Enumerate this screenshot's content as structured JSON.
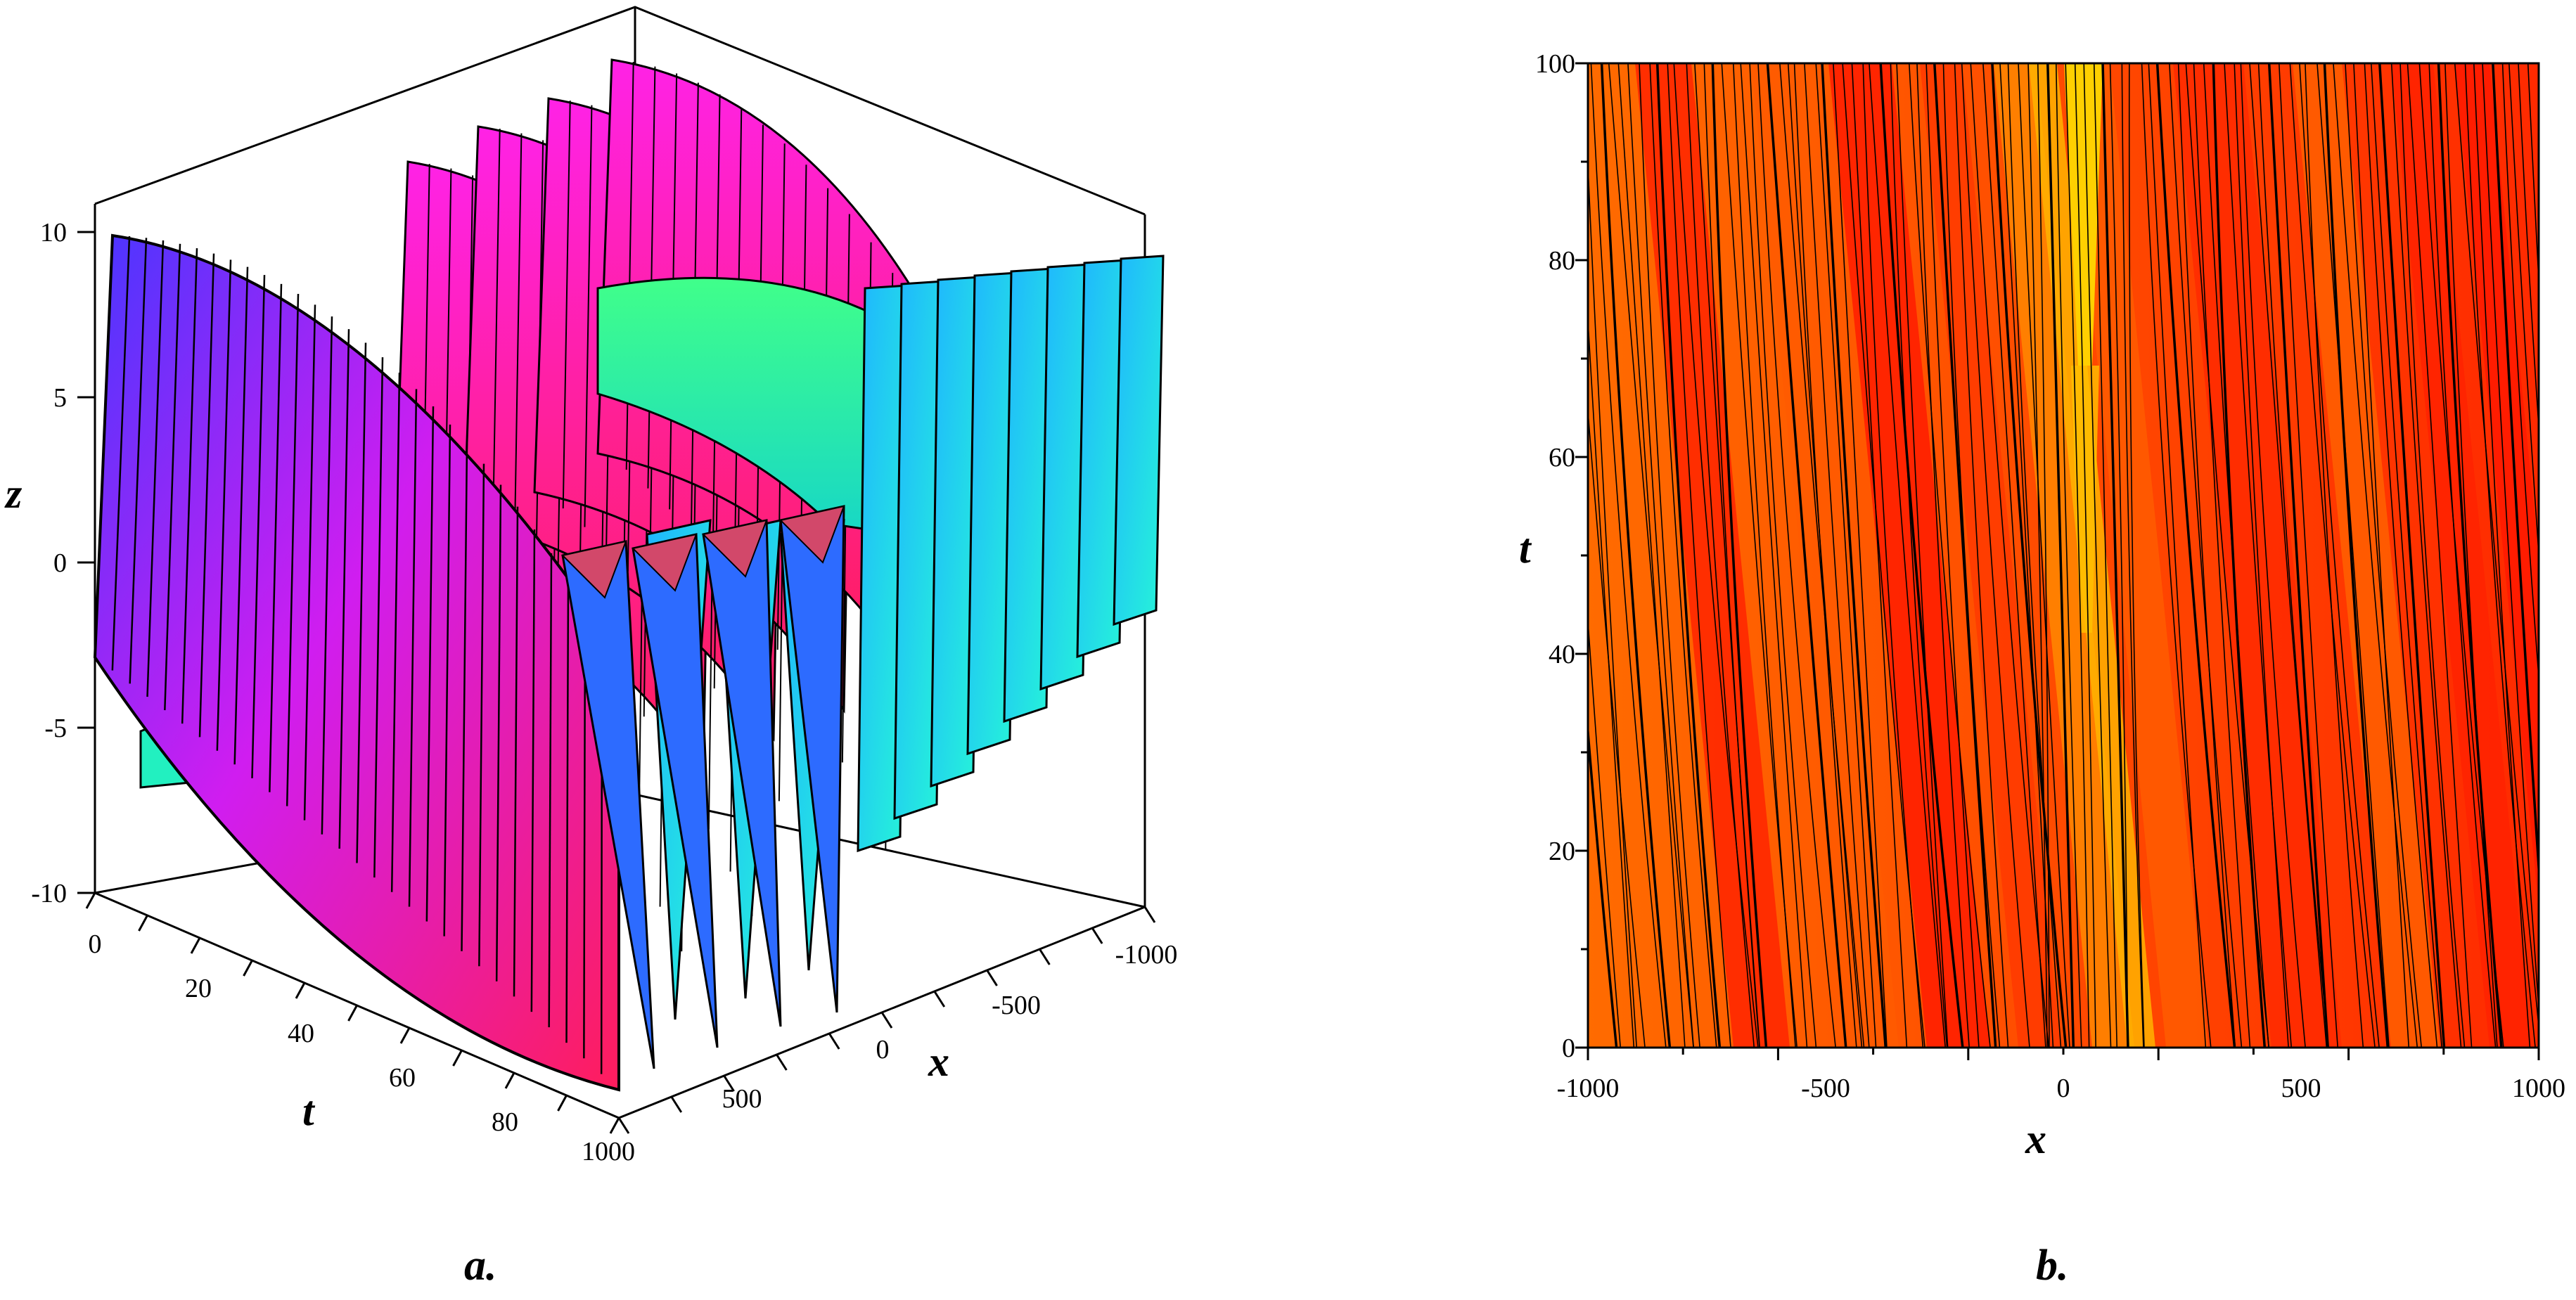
{
  "chart_data": [
    {
      "type": "surface3d",
      "caption": "a.",
      "xlabel": "x",
      "ylabel": "t",
      "zlabel": "z",
      "x_range": [
        -1000,
        1000
      ],
      "t_range": [
        0,
        100
      ],
      "z_range": [
        -10,
        10
      ],
      "x_ticks": [
        "-1000",
        "-500",
        "0",
        "500",
        "1000"
      ],
      "t_ticks": [
        "0",
        "20",
        "40",
        "60",
        "80"
      ],
      "z_ticks": [
        "10",
        "5",
        "0",
        "-5",
        "-10"
      ],
      "colors": {
        "magenta": "#ff1fe8",
        "blue": "#3a2cff",
        "cyan": "#22f0e0",
        "green": "#39ff70",
        "red": "#ff2060"
      }
    },
    {
      "type": "contour",
      "caption": "b.",
      "xlabel": "x",
      "ylabel": "t",
      "x_range": [
        -1000,
        1000
      ],
      "y_range": [
        0,
        100
      ],
      "x_ticks": [
        "-1000",
        "-500",
        "0",
        "500",
        "1000"
      ],
      "y_ticks": [
        "0",
        "20",
        "40",
        "60",
        "80",
        "100"
      ],
      "colors": {
        "red": "#ff1a00",
        "orange": "#ff6a00",
        "yellow": "#ffd000"
      }
    }
  ]
}
